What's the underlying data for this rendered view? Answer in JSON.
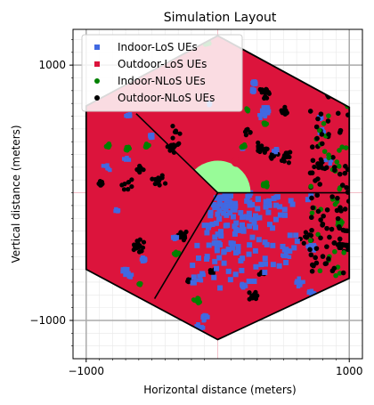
{
  "chart_data": {
    "type": "scatter",
    "title": "Simulation Layout",
    "xlabel": "Horizontal distance (meters)",
    "ylabel": "Vertical distance (meters)",
    "xlim": [
      -1100,
      1100
    ],
    "ylim": [
      -1300,
      1280
    ],
    "x_ticks": [
      {
        "value": -1000,
        "label": "−1000"
      },
      {
        "value": 1000,
        "label": "1000"
      }
    ],
    "y_ticks": [
      {
        "value": 1000,
        "label": "1000"
      },
      {
        "value": -1000,
        "label": "−1000"
      }
    ],
    "grid": true,
    "legend_position": "top-left",
    "legend": [
      {
        "label": "Indoor-LoS UEs",
        "color": "#4169e1",
        "marker": "square"
      },
      {
        "label": "Outdoor-LoS UEs",
        "color": "#dc143c",
        "marker": "square"
      },
      {
        "label": "Indoor-NLoS UEs",
        "color": "#008000",
        "marker": "circle"
      },
      {
        "label": "Outdoor-NLoS UEs",
        "color": "#000000",
        "marker": "circle"
      }
    ],
    "cell_hexagon": [
      [
        1000,
        670
      ],
      [
        1000,
        -670
      ],
      [
        0,
        -1150
      ],
      [
        -1000,
        -600
      ],
      [
        -1000,
        680
      ],
      [
        0,
        1230
      ]
    ],
    "sector_boundaries": [
      [
        [
          0,
          0
        ],
        [
          -620,
          620
        ]
      ],
      [
        [
          0,
          0
        ],
        [
          1000,
          0
        ]
      ],
      [
        [
          0,
          0
        ],
        [
          -480,
          -830
        ]
      ]
    ],
    "base_station": {
      "x": 0,
      "y": 0,
      "coverage_radius": 250,
      "coverage_color": "#98fb98",
      "marker_x": 140,
      "marker_y": 240
    },
    "colors": {
      "indoor_los": "#4169e1",
      "outdoor_los": "#dc143c",
      "indoor_nlos": "#008000",
      "outdoor_nlos": "#000000"
    }
  }
}
